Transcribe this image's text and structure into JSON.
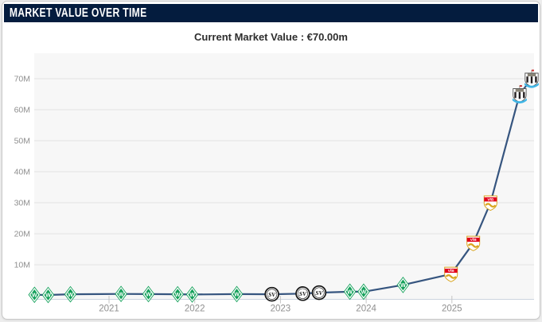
{
  "header": {
    "title": "MARKET VALUE OVER TIME",
    "bg_color": "#041c3e",
    "text_color": "#ffffff"
  },
  "subtitle": {
    "text": "Current Market Value : €70.00m"
  },
  "chart_data": {
    "type": "line",
    "title": "Market Value Over Time",
    "current_value": "€70.00m",
    "unit": "€ million",
    "xlabel": "",
    "ylabel": "",
    "ylim": [
      0,
      78
    ],
    "xlim": [
      2020.05,
      2026.0
    ],
    "grid": true,
    "legend_position": "none",
    "line_color": "#36557f",
    "plot_bg": "#f7f7f7",
    "grid_color": "#e3e3e3",
    "axis_color": "#ccd4df",
    "tick_color": "#c4c4c4",
    "tick_label_color": "#8f8f8f",
    "y_ticks": [
      {
        "label": "10M",
        "value": 10
      },
      {
        "label": "20M",
        "value": 20
      },
      {
        "label": "30M",
        "value": 30
      },
      {
        "label": "40M",
        "value": 40
      },
      {
        "label": "50M",
        "value": 50
      },
      {
        "label": "60M",
        "value": 60
      },
      {
        "label": "70M",
        "value": 70
      }
    ],
    "x_ticks": [
      {
        "label": "2021",
        "value": 2021
      },
      {
        "label": "2022",
        "value": 2022
      },
      {
        "label": "2023",
        "value": 2023
      },
      {
        "label": "2024",
        "value": 2024
      },
      {
        "label": "2025",
        "value": 2025
      }
    ],
    "clubs": {
      "werder": {
        "name": "SV Werder Bremen",
        "icon": "werder-bremen-crest",
        "primary": "#13a15a"
      },
      "elversberg": {
        "name": "SV Elversberg",
        "icon": "sv-elversberg-crest",
        "primary": "#141414"
      },
      "vfb": {
        "name": "VfB Stuttgart",
        "icon": "vfb-stuttgart-crest",
        "primary": "#e2001a",
        "accent": "#d9a520"
      },
      "newcastle": {
        "name": "Newcastle United",
        "icon": "newcastle-united-crest",
        "primary": "#241f20",
        "accent": "#41b6e6"
      }
    },
    "series": [
      {
        "name": "Market value (€m)",
        "points": [
          {
            "year": 2020.13,
            "value_m": 0.3,
            "club": "werder"
          },
          {
            "year": 2020.29,
            "value_m": 0.25,
            "club": "werder"
          },
          {
            "year": 2020.55,
            "value_m": 0.5,
            "club": "werder"
          },
          {
            "year": 2021.14,
            "value_m": 0.6,
            "club": "werder"
          },
          {
            "year": 2021.46,
            "value_m": 0.55,
            "club": "werder"
          },
          {
            "year": 2021.8,
            "value_m": 0.5,
            "club": "werder"
          },
          {
            "year": 2021.97,
            "value_m": 0.4,
            "club": "werder"
          },
          {
            "year": 2022.49,
            "value_m": 0.55,
            "club": "werder"
          },
          {
            "year": 2022.9,
            "value_m": 0.5,
            "club": "elversberg"
          },
          {
            "year": 2023.26,
            "value_m": 0.7,
            "club": "elversberg"
          },
          {
            "year": 2023.45,
            "value_m": 1.0,
            "club": "elversberg"
          },
          {
            "year": 2023.81,
            "value_m": 1.3,
            "club": "werder"
          },
          {
            "year": 2023.97,
            "value_m": 1.3,
            "club": "werder"
          },
          {
            "year": 2024.43,
            "value_m": 3.5,
            "club": "werder"
          },
          {
            "year": 2024.99,
            "value_m": 7,
            "club": "vfb"
          },
          {
            "year": 2025.25,
            "value_m": 17,
            "club": "vfb"
          },
          {
            "year": 2025.45,
            "value_m": 30,
            "club": "vfb"
          },
          {
            "year": 2025.79,
            "value_m": 65,
            "club": "newcastle"
          },
          {
            "year": 2025.93,
            "value_m": 70,
            "club": "newcastle"
          }
        ]
      }
    ]
  }
}
